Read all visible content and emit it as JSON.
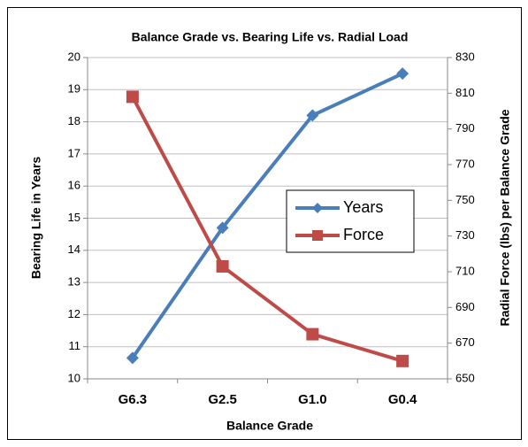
{
  "chart_data": {
    "type": "line",
    "title": "Balance Grade vs. Bearing Life vs. Radial Load",
    "x_label": "Balance Grade",
    "y_label": "Bearing Life in Years",
    "y2_label": "Radial Force (lbs) per Balance Grade",
    "categories": [
      "G6.3",
      "G2.5",
      "G1.0",
      "G0.4"
    ],
    "series": [
      {
        "name": "Years",
        "color": "#4a7ebb",
        "marker": "diamond",
        "values": [
          10.65,
          14.7,
          18.2,
          19.5
        ]
      },
      {
        "name": "Force",
        "color": "#be4b48",
        "marker": "square",
        "axis": "y2",
        "values": [
          808,
          713,
          675,
          660
        ]
      }
    ],
    "ylim": [
      10,
      20
    ],
    "yticks": [
      10,
      11,
      12,
      13,
      14,
      15,
      16,
      17,
      18,
      19,
      20
    ],
    "y2lim": [
      650,
      830
    ],
    "y2ticks": [
      650,
      670,
      690,
      710,
      730,
      750,
      770,
      790,
      810,
      830
    ],
    "grid": true,
    "legend": "center-right"
  }
}
